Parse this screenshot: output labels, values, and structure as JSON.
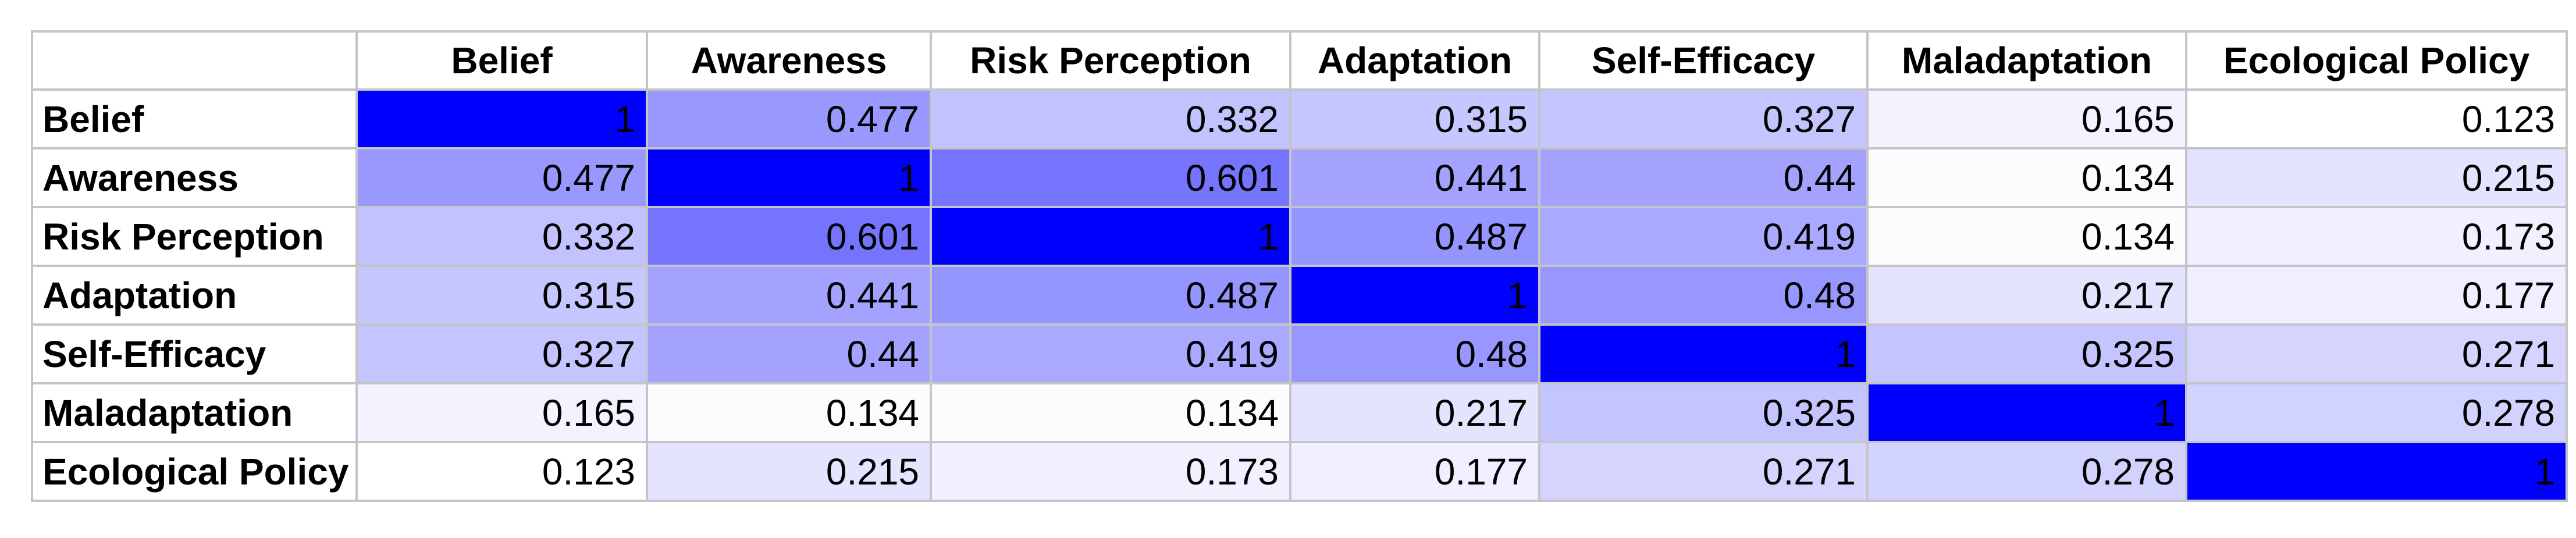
{
  "chart_data": {
    "type": "heatmap",
    "title": "",
    "variables": [
      "Belief",
      "Awareness",
      "Risk Perception",
      "Adaptation",
      "Self-Efficacy",
      "Maladaptation",
      "Ecological Policy"
    ],
    "matrix": [
      [
        1,
        0.477,
        0.332,
        0.315,
        0.327,
        0.165,
        0.123
      ],
      [
        0.477,
        1,
        0.601,
        0.441,
        0.44,
        0.134,
        0.215
      ],
      [
        0.332,
        0.601,
        1,
        0.487,
        0.419,
        0.134,
        0.173
      ],
      [
        0.315,
        0.441,
        0.487,
        1,
        0.48,
        0.217,
        0.177
      ],
      [
        0.327,
        0.44,
        0.419,
        0.48,
        1,
        0.325,
        0.271
      ],
      [
        0.165,
        0.134,
        0.134,
        0.217,
        0.325,
        1,
        0.278
      ],
      [
        0.123,
        0.215,
        0.173,
        0.177,
        0.271,
        0.278,
        1
      ]
    ],
    "corner_label": "",
    "legend_position": "none",
    "grid": true,
    "colorscale": {
      "min_value": 0.123,
      "max_value": 1,
      "min_color": "#ffffff",
      "max_color": "#0000ff",
      "grid_color": "#c5c5c8",
      "text_color": "#000000"
    }
  }
}
